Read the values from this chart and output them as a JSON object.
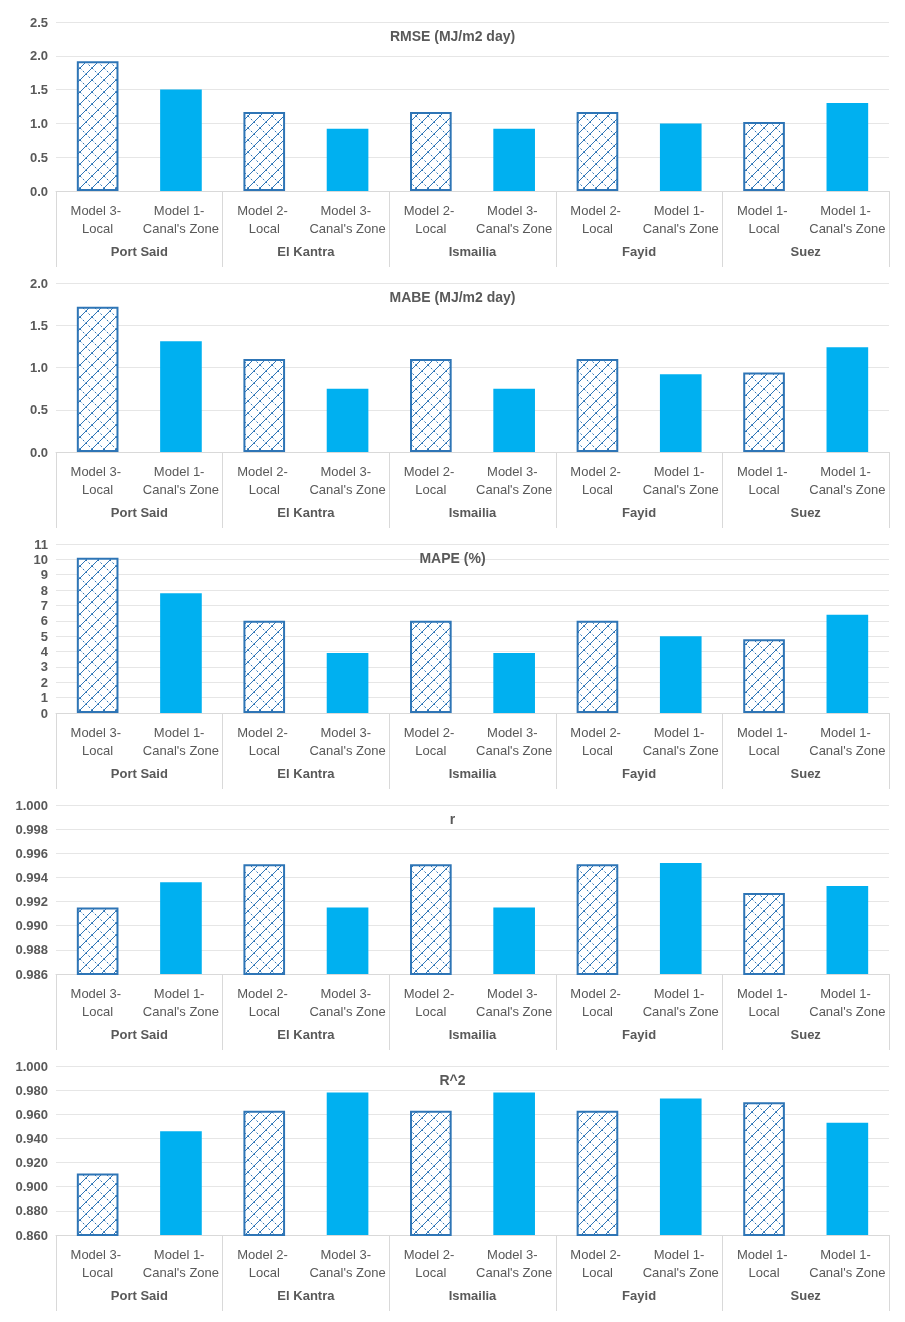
{
  "chart_data": [
    {
      "type": "bar",
      "title": "RMSE (MJ/m2 day)",
      "categories": [
        "Model 3- Local",
        "Model 1- Canal's Zone",
        "Model 2- Local",
        "Model 3- Canal's Zone",
        "Model 2- Local",
        "Model 3- Canal's Zone",
        "Model 2- Local",
        "Model 1- Canal's Zone",
        "Model 1- Local",
        "Model 1- Canal's Zone"
      ],
      "annotations": [
        "Port Said",
        "El Kantra",
        "Ismailia",
        "Fayid",
        "Suez"
      ],
      "series": [
        {
          "color": "#2e75b6",
          "values": [
            1.92,
            null,
            1.17,
            null,
            1.17,
            null,
            1.17,
            null,
            1.02,
            null
          ]
        },
        {
          "color": "#00b0f0",
          "values": [
            null,
            1.5,
            null,
            0.92,
            null,
            0.92,
            null,
            1.0,
            null,
            1.3
          ]
        }
      ],
      "ylim": [
        0,
        2.5
      ],
      "yticks": [
        {
          "value": 0,
          "label": "0.0"
        },
        {
          "value": 0.5,
          "label": "0.5"
        },
        {
          "value": 1,
          "label": "1.0"
        },
        {
          "value": 1.5,
          "label": "1.5"
        },
        {
          "value": 2,
          "label": "2.0"
        },
        {
          "value": 2.5,
          "label": "2.5"
        }
      ],
      "grid": "y"
    },
    {
      "type": "bar",
      "title": "MABE (MJ/m2 day)",
      "categories": [
        "Model 3- Local",
        "Model 1- Canal's Zone",
        "Model 2- Local",
        "Model 3- Canal's Zone",
        "Model 2- Local",
        "Model 3- Canal's Zone",
        "Model 2- Local",
        "Model 1- Canal's Zone",
        "Model 1- Local",
        "Model 1- Canal's Zone"
      ],
      "annotations": [
        "Port Said",
        "El Kantra",
        "Ismailia",
        "Fayid",
        "Suez"
      ],
      "series": [
        {
          "color": "#2e75b6",
          "values": [
            1.72,
            null,
            1.1,
            null,
            1.1,
            null,
            1.1,
            null,
            0.94,
            null
          ]
        },
        {
          "color": "#00b0f0",
          "values": [
            null,
            1.31,
            null,
            0.75,
            null,
            0.75,
            null,
            0.92,
            null,
            1.24
          ]
        }
      ],
      "ylim": [
        0,
        2.0
      ],
      "yticks": [
        {
          "value": 0,
          "label": "0.0"
        },
        {
          "value": 0.5,
          "label": "0.5"
        },
        {
          "value": 1,
          "label": "1.0"
        },
        {
          "value": 1.5,
          "label": "1.5"
        },
        {
          "value": 2,
          "label": "2.0"
        }
      ],
      "grid": "y"
    },
    {
      "type": "bar",
      "title": "MAPE (%)",
      "categories": [
        "Model 3- Local",
        "Model 1- Canal's Zone",
        "Model 2- Local",
        "Model 3- Canal's Zone",
        "Model 2- Local",
        "Model 3- Canal's Zone",
        "Model 2- Local",
        "Model 1- Canal's Zone",
        "Model 1- Local",
        "Model 1- Canal's Zone"
      ],
      "annotations": [
        "Port Said",
        "El Kantra",
        "Ismailia",
        "Fayid",
        "Suez"
      ],
      "series": [
        {
          "color": "#2e75b6",
          "values": [
            10.1,
            null,
            6.0,
            null,
            6.0,
            null,
            6.0,
            null,
            4.8,
            null
          ]
        },
        {
          "color": "#00b0f0",
          "values": [
            null,
            7.8,
            null,
            3.9,
            null,
            3.9,
            null,
            5.0,
            null,
            6.4
          ]
        }
      ],
      "ylim": [
        0,
        11
      ],
      "yticks": [
        0,
        1,
        2,
        3,
        4,
        5,
        6,
        7,
        8,
        9,
        10,
        11
      ],
      "grid": "y"
    },
    {
      "type": "bar",
      "title": "r",
      "categories": [
        "Model 3- Local",
        "Model 1- Canal's Zone",
        "Model 2- Local",
        "Model 3- Canal's Zone",
        "Model 2- Local",
        "Model 3- Canal's Zone",
        "Model 2- Local",
        "Model 1- Canal's Zone",
        "Model 1- Local",
        "Model 1- Canal's Zone"
      ],
      "annotations": [
        "Port Said",
        "El Kantra",
        "Ismailia",
        "Fayid",
        "Suez"
      ],
      "series": [
        {
          "color": "#2e75b6",
          "values": [
            0.9915,
            null,
            0.9951,
            null,
            0.9951,
            null,
            0.9951,
            null,
            0.9927,
            null
          ]
        },
        {
          "color": "#00b0f0",
          "values": [
            null,
            0.9936,
            null,
            0.9915,
            null,
            0.9915,
            null,
            0.9952,
            null,
            0.9933
          ]
        }
      ],
      "ylim": [
        0.986,
        1.0
      ],
      "yticks": [
        {
          "value": 0.986,
          "label": "0.986"
        },
        {
          "value": 0.988,
          "label": "0.988"
        },
        {
          "value": 0.99,
          "label": "0.990"
        },
        {
          "value": 0.992,
          "label": "0.992"
        },
        {
          "value": 0.994,
          "label": "0.994"
        },
        {
          "value": 0.996,
          "label": "0.996"
        },
        {
          "value": 0.998,
          "label": "0.998"
        },
        {
          "value": 1,
          "label": "1.000"
        }
      ],
      "grid": "y"
    },
    {
      "type": "bar",
      "title": "R^2",
      "categories": [
        "Model 3- Local",
        "Model 1- Canal's Zone",
        "Model 2- Local",
        "Model 3- Canal's Zone",
        "Model 2- Local",
        "Model 3- Canal's Zone",
        "Model 2- Local",
        "Model 1- Canal's Zone",
        "Model 1- Local",
        "Model 1- Canal's Zone"
      ],
      "annotations": [
        "Port Said",
        "El Kantra",
        "Ismailia",
        "Fayid",
        "Suez"
      ],
      "series": [
        {
          "color": "#2e75b6",
          "values": [
            0.911,
            null,
            0.963,
            null,
            0.963,
            null,
            0.963,
            null,
            0.97,
            null
          ]
        },
        {
          "color": "#00b0f0",
          "values": [
            null,
            0.946,
            null,
            0.978,
            null,
            0.978,
            null,
            0.973,
            null,
            0.953
          ]
        }
      ],
      "ylim": [
        0.86,
        1.0
      ],
      "yticks": [
        {
          "value": 0.86,
          "label": "0.860"
        },
        {
          "value": 0.88,
          "label": "0.880"
        },
        {
          "value": 0.9,
          "label": "0.900"
        },
        {
          "value": 0.92,
          "label": "0.920"
        },
        {
          "value": 0.94,
          "label": "0.940"
        },
        {
          "value": 0.96,
          "label": "0.960"
        },
        {
          "value": 0.98,
          "label": "0.980"
        },
        {
          "value": 1,
          "label": "1.000"
        }
      ],
      "grid": "y"
    }
  ]
}
